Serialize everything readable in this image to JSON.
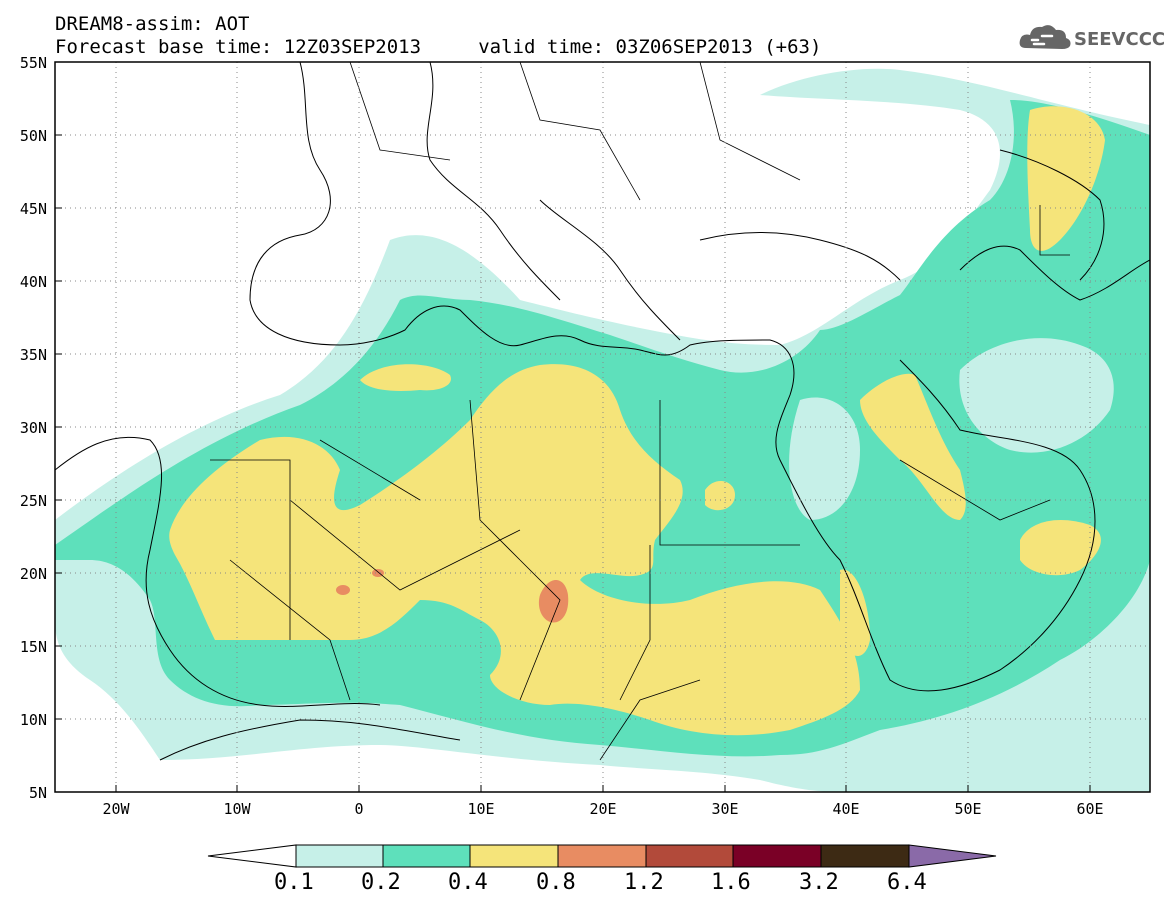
{
  "header": {
    "line1": "DREAM8-assim: AOT",
    "line2": "Forecast base time: 12Z03SEP2013     valid time: 03Z06SEP2013 (+63)"
  },
  "logo": {
    "text": "SEEVCCC",
    "icon": "cloud-icon"
  },
  "map": {
    "lat_ticks": [
      "55N",
      "50N",
      "45N",
      "40N",
      "35N",
      "30N",
      "25N",
      "20N",
      "15N",
      "10N",
      "5N"
    ],
    "lon_ticks": [
      "20W",
      "10W",
      "0",
      "10E",
      "20E",
      "30E",
      "40E",
      "50E",
      "60E"
    ],
    "extent": {
      "lon_min": -25,
      "lon_max": 65,
      "lat_min": 5,
      "lat_max": 55
    },
    "grid": true,
    "grid_style": "dotted"
  },
  "colorbar": {
    "labels": [
      "0.1",
      "0.2",
      "0.4",
      "0.8",
      "1.2",
      "1.6",
      "3.2",
      "6.4"
    ],
    "colors": [
      "#ffffff",
      "#c6f0e8",
      "#5ee0bb",
      "#f5e47a",
      "#e88c62",
      "#b24a3a",
      "#7a0026",
      "#3d2a14",
      "#8a6aa8"
    ]
  },
  "levels": {
    "l1": "#c6f0e8",
    "l2": "#5ee0bb",
    "l3": "#f5e47a",
    "l4": "#e88c62"
  }
}
